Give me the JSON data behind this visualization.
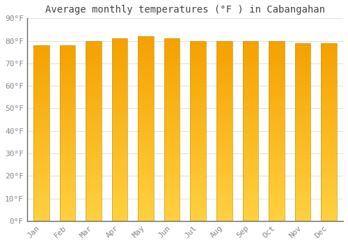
{
  "title": "Average monthly temperatures (°F ) in Cabangahan",
  "months": [
    "Jan",
    "Feb",
    "Mar",
    "Apr",
    "May",
    "Jun",
    "Jul",
    "Aug",
    "Sep",
    "Oct",
    "Nov",
    "Dec"
  ],
  "values": [
    78,
    78,
    80,
    81,
    82,
    81,
    80,
    80,
    80,
    80,
    79,
    79
  ],
  "bar_color_top": "#F5A000",
  "bar_color_bottom": "#FFD040",
  "bar_edge_color": "#C8A000",
  "ylim": [
    0,
    90
  ],
  "ytick_step": 10,
  "background_color": "#ffffff",
  "plot_bg_color": "#ffffff",
  "grid_color": "#e0e0e0",
  "title_fontsize": 10,
  "tick_fontsize": 8,
  "font_family": "monospace",
  "title_color": "#444444",
  "tick_color": "#888888",
  "bar_width": 0.6,
  "n_gradient_segments": 60,
  "figsize": [
    5.0,
    3.5
  ],
  "dpi": 100
}
